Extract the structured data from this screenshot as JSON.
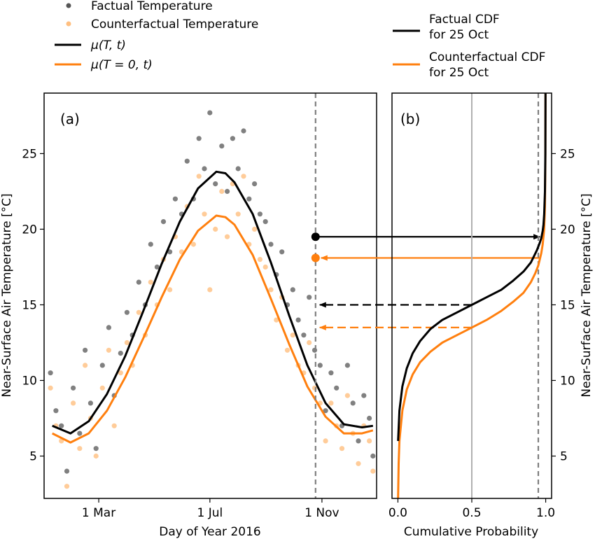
{
  "legend": {
    "entries": [
      {
        "label": "Factual Temperature",
        "kind": "dot",
        "color": "#555555"
      },
      {
        "label": "Counterfactual Temperature",
        "kind": "dot",
        "color": "#ffbf80"
      },
      {
        "label": "μ(T, t)",
        "kind": "line",
        "color": "#000000"
      },
      {
        "label": "μ(T = 0, t)",
        "kind": "line",
        "color": "#ff7f0e"
      }
    ],
    "cdf_entries": [
      {
        "label": [
          "Factual CDF",
          "for 25 Oct"
        ],
        "kind": "line",
        "color": "#000000"
      },
      {
        "label": [
          "Counterfactual CDF",
          "for 25 Oct"
        ],
        "kind": "line",
        "color": "#ff7f0e"
      }
    ]
  },
  "colors": {
    "factual": "#000000",
    "counterfactual": "#ff7f0e",
    "factual_dot": "#555555",
    "counterfactual_dot": "#ffbf80",
    "marker_line": "#7f7f7f",
    "median_line": "#b0b0b0"
  },
  "chart_data": [
    {
      "panel": "(a)",
      "type": "scatter",
      "xlabel": "Day of Year 2016",
      "ylabel": "Near-Surface Air Temperature [°C]",
      "x_ticks": [
        {
          "label": "1 Mar",
          "day": 61
        },
        {
          "label": "1 Jul",
          "day": 183
        },
        {
          "label": "1 Nov",
          "day": 306
        }
      ],
      "y_ticks": [
        5,
        10,
        15,
        20,
        25
      ],
      "xlim": [
        1,
        366
      ],
      "ylim": [
        2.2,
        29
      ],
      "marker_day": 299,
      "grid": false,
      "legend_position": "above-left",
      "series": [
        {
          "name": "μ(T, t)",
          "kind": "line",
          "color": "#000000",
          "x": [
            10,
            30,
            50,
            70,
            90,
            110,
            130,
            150,
            170,
            190,
            200,
            210,
            230,
            250,
            270,
            290,
            310,
            330,
            350,
            362
          ],
          "y": [
            7.0,
            6.5,
            7.3,
            9.1,
            11.6,
            14.6,
            17.7,
            20.5,
            22.7,
            23.8,
            23.7,
            23.1,
            21.0,
            17.8,
            14.3,
            11.0,
            8.5,
            7.1,
            6.9,
            7.0
          ]
        },
        {
          "name": "μ(T = 0, t)",
          "kind": "line",
          "color": "#ff7f0e",
          "x": [
            10,
            30,
            50,
            70,
            90,
            110,
            130,
            150,
            170,
            190,
            200,
            210,
            230,
            250,
            270,
            290,
            310,
            330,
            350,
            362
          ],
          "y": [
            6.5,
            5.9,
            6.5,
            8.0,
            10.2,
            12.8,
            15.5,
            18.0,
            19.9,
            20.9,
            20.8,
            20.3,
            18.3,
            15.4,
            12.4,
            9.6,
            7.6,
            6.5,
            6.5,
            6.7
          ]
        },
        {
          "name": "Factual Temperature",
          "kind": "points",
          "color": "#555555",
          "x": [
            8,
            14,
            20,
            26,
            33,
            40,
            46,
            52,
            58,
            65,
            72,
            78,
            85,
            92,
            98,
            105,
            112,
            118,
            125,
            132,
            139,
            145,
            152,
            158,
            165,
            171,
            177,
            183,
            189,
            196,
            202,
            208,
            214,
            220,
            226,
            232,
            238,
            244,
            250,
            256,
            262,
            268,
            274,
            280,
            286,
            292,
            298,
            304,
            310,
            316,
            322,
            328,
            334,
            340,
            346,
            352,
            358,
            362
          ],
          "y": [
            10.5,
            8.0,
            7.0,
            4.0,
            9.5,
            6.5,
            12.0,
            8.5,
            5.5,
            11.0,
            13.5,
            9.0,
            11.8,
            14.5,
            13.0,
            16.5,
            15.0,
            19.0,
            17.5,
            20.5,
            18.5,
            22.0,
            21.0,
            24.5,
            22.0,
            26.0,
            24.0,
            27.7,
            23.0,
            25.5,
            22.5,
            26.0,
            24.0,
            26.5,
            22.0,
            23.0,
            21.0,
            20.5,
            19.0,
            17.0,
            18.5,
            15.0,
            16.0,
            14.0,
            13.0,
            15.5,
            12.0,
            11.0,
            8.0,
            10.5,
            9.5,
            7.0,
            11.0,
            8.5,
            6.0,
            9.0,
            7.5,
            5.0
          ]
        },
        {
          "name": "Counterfactual Temperature",
          "kind": "points",
          "color": "#ffbf80",
          "x": [
            8,
            14,
            20,
            26,
            33,
            40,
            46,
            52,
            58,
            65,
            72,
            78,
            85,
            92,
            98,
            105,
            112,
            118,
            125,
            132,
            139,
            145,
            152,
            158,
            165,
            171,
            177,
            183,
            189,
            196,
            202,
            208,
            214,
            220,
            226,
            232,
            238,
            244,
            250,
            256,
            262,
            268,
            274,
            280,
            286,
            292,
            298,
            304,
            310,
            316,
            322,
            328,
            334,
            340,
            346,
            352,
            358,
            362
          ],
          "y": [
            9.5,
            7.0,
            6.0,
            3.0,
            8.5,
            5.5,
            11.0,
            7.5,
            5.0,
            9.5,
            12.0,
            7.0,
            10.5,
            12.5,
            11.0,
            14.5,
            13.0,
            16.5,
            15.0,
            18.0,
            16.0,
            19.5,
            18.5,
            21.5,
            19.0,
            23.5,
            21.0,
            16.0,
            20.0,
            22.5,
            19.5,
            23.0,
            21.0,
            23.5,
            19.0,
            20.0,
            18.0,
            17.5,
            16.0,
            14.0,
            15.5,
            12.0,
            13.0,
            11.0,
            10.5,
            12.5,
            9.5,
            8.5,
            6.0,
            8.5,
            7.0,
            5.5,
            9.0,
            6.5,
            4.5,
            7.0,
            6.0,
            4.0
          ]
        }
      ]
    },
    {
      "panel": "(b)",
      "type": "line",
      "xlabel": "Cumulative Probability",
      "ylabel": "Near-Surface Air Temperature [°C]",
      "x_ticks": [
        "0.0",
        "0.5",
        "1.0"
      ],
      "y_ticks": [
        5,
        10,
        15,
        20,
        25
      ],
      "xlim": [
        -0.04,
        1.04
      ],
      "ylim": [
        2.2,
        29
      ],
      "median_x": 0.5,
      "quantile_x": 0.95,
      "grid": false,
      "series": [
        {
          "name": "Factual CDF for 25 Oct",
          "color": "#000000",
          "x": [
            0.001,
            0.01,
            0.03,
            0.06,
            0.1,
            0.15,
            0.22,
            0.3,
            0.4,
            0.5,
            0.6,
            0.7,
            0.78,
            0.85,
            0.9,
            0.94,
            0.96,
            0.97,
            0.98,
            0.985,
            0.99,
            0.995,
            0.998,
            0.999
          ],
          "y": [
            6.0,
            8.0,
            9.6,
            10.8,
            11.8,
            12.6,
            13.4,
            14.0,
            14.5,
            15.0,
            15.5,
            16.0,
            16.6,
            17.2,
            17.8,
            18.6,
            19.1,
            19.4,
            19.9,
            20.3,
            21.0,
            22.5,
            25.0,
            29.0
          ]
        },
        {
          "name": "Counterfactual CDF for 25 Oct",
          "color": "#ff7f0e",
          "x": [
            0.001,
            0.005,
            0.01,
            0.03,
            0.06,
            0.1,
            0.15,
            0.22,
            0.3,
            0.4,
            0.5,
            0.6,
            0.7,
            0.78,
            0.85,
            0.9,
            0.93,
            0.95,
            0.97,
            0.98,
            0.99,
            0.995,
            0.998,
            0.999
          ],
          "y": [
            2.2,
            4.5,
            6.0,
            8.0,
            9.4,
            10.4,
            11.2,
            11.9,
            12.5,
            13.0,
            13.5,
            14.0,
            14.6,
            15.2,
            15.8,
            16.5,
            17.1,
            17.6,
            18.4,
            19.0,
            20.0,
            21.5,
            24.5,
            29.0
          ]
        }
      ]
    }
  ],
  "arrows": [
    {
      "from": "dot",
      "y": 19.5,
      "to_x": 0.96,
      "color": "#000000",
      "style": "solid"
    },
    {
      "from": "dot",
      "y": 18.1,
      "to_x": 0.96,
      "color": "#ff7f0e",
      "style": "solid",
      "dir": "reverse"
    },
    {
      "y": 15.0,
      "to_x": 0.5,
      "color": "#000000",
      "style": "dashed"
    },
    {
      "y": 13.5,
      "to_x": 0.5,
      "color": "#ff7f0e",
      "style": "dashed"
    }
  ]
}
